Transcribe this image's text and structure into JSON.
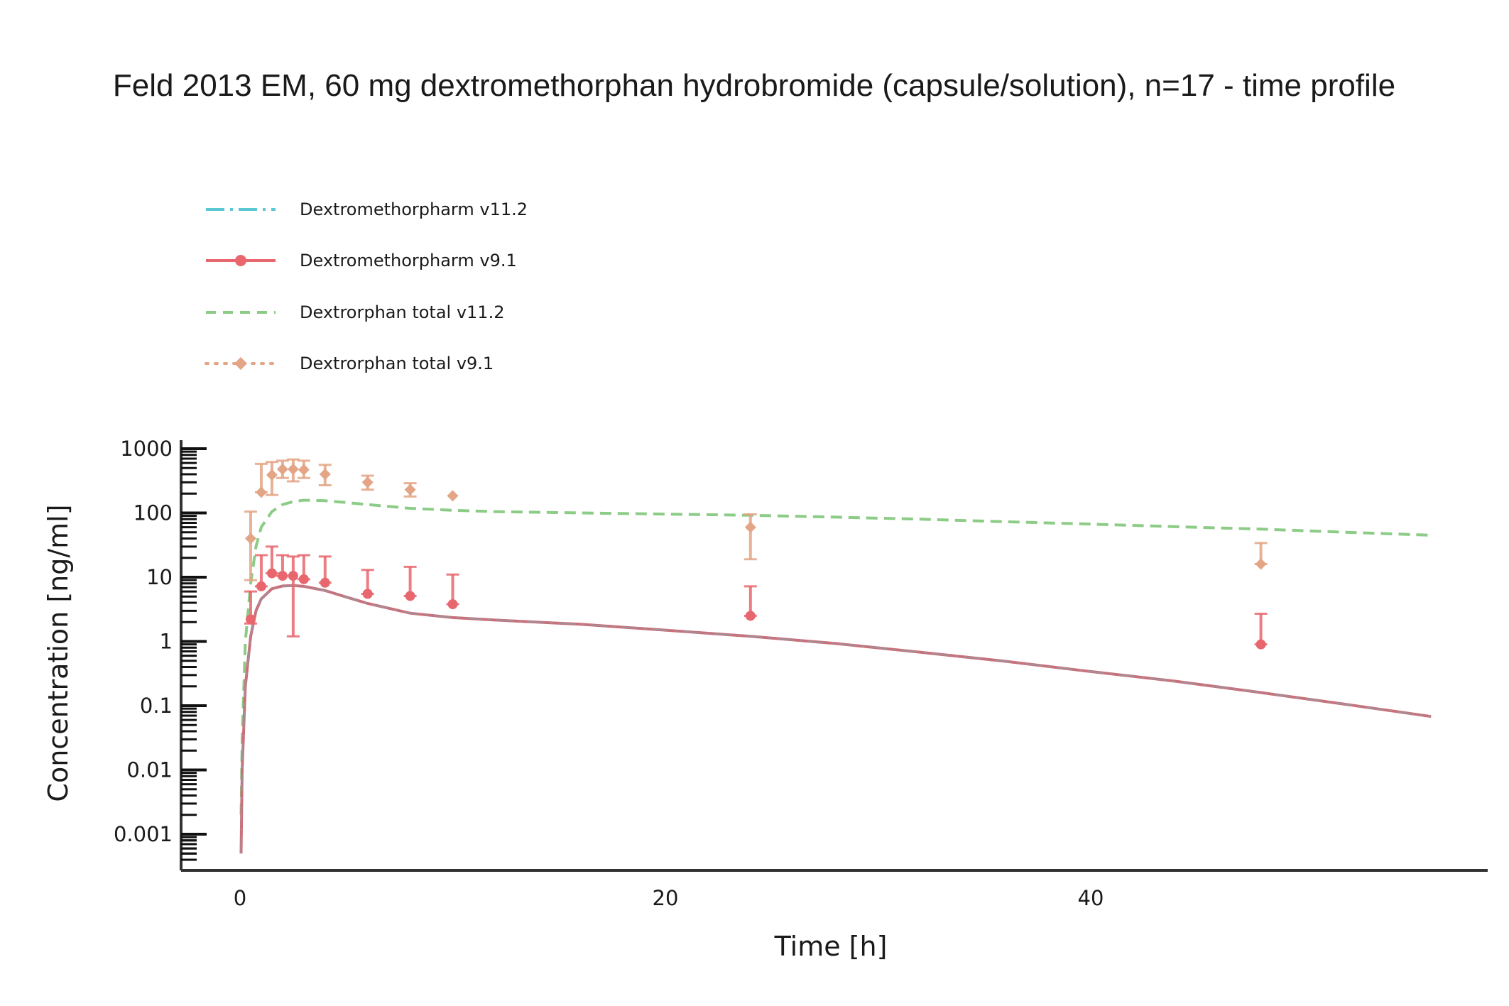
{
  "chart_data": {
    "type": "line",
    "title": "Feld 2013 EM, 60 mg dextromethorphan hydrobromide (capsule/solution), n=17 - time profile",
    "xlabel": "Time [h]",
    "ylabel": "Concentration [ng/ml]",
    "xlim": [
      -1.4,
      59
    ],
    "ylim": [
      0.00035,
      1500
    ],
    "yscale": "log",
    "x_ticks": [
      0,
      20,
      40
    ],
    "x_tick_labels": [
      "0",
      "20",
      "40"
    ],
    "y_ticks": [
      0.001,
      0.01,
      0.1,
      1,
      10,
      100,
      1000
    ],
    "y_tick_labels": [
      "0.001",
      "0.01",
      "0.1",
      "1",
      "10",
      "100",
      "1000"
    ],
    "legend_position": "top-left",
    "series": [
      {
        "name": "Dextromethorpharm v11.2",
        "kind": "simulation",
        "color": "#5bc8d4",
        "dash": "long-dash-dot",
        "x": [
          0.05,
          0.1,
          0.25,
          0.5,
          0.75,
          1,
          1.5,
          2,
          2.5,
          3,
          4,
          5,
          6,
          8,
          10,
          12,
          16,
          20,
          24,
          28,
          32,
          36,
          40,
          44,
          48,
          52,
          56
        ],
        "y": [
          0.0005,
          0.01,
          0.2,
          1.2,
          3.0,
          4.6,
          6.6,
          7.3,
          7.4,
          7.2,
          6.2,
          4.9,
          3.9,
          2.75,
          2.35,
          2.15,
          1.85,
          1.5,
          1.2,
          0.93,
          0.68,
          0.49,
          0.34,
          0.24,
          0.16,
          0.105,
          0.068
        ]
      },
      {
        "name": "Dextromethorpharm v9.1",
        "kind": "observed",
        "color": "#e8676e",
        "marker": "circle",
        "x": [
          0.5,
          1,
          1.5,
          2,
          2.5,
          3,
          4,
          6,
          8,
          10,
          24,
          48
        ],
        "y": [
          2.2,
          7.2,
          11.5,
          10.5,
          10.5,
          9.3,
          8.2,
          5.5,
          5.1,
          3.8,
          2.5,
          0.9
        ],
        "error_low": [
          1.9,
          7.2,
          11.5,
          10.5,
          1.2,
          9.3,
          8.2,
          5.5,
          5.1,
          3.8,
          2.5,
          0.9
        ],
        "error_high": [
          6.0,
          22.0,
          30.0,
          22.0,
          21.0,
          22.0,
          21.0,
          13.0,
          14.5,
          11.0,
          7.2,
          2.7
        ]
      },
      {
        "name": "Dextrorphan total v11.2",
        "kind": "simulation",
        "color": "#8ccc86",
        "dash": "dash",
        "x": [
          0.05,
          0.1,
          0.25,
          0.5,
          0.75,
          1,
          1.5,
          2,
          2.5,
          3,
          4,
          5,
          6,
          8,
          10,
          12,
          16,
          20,
          24,
          28,
          32,
          36,
          40,
          44,
          48,
          52,
          56
        ],
        "y": [
          0.002,
          0.03,
          1.0,
          8.0,
          30.0,
          60.0,
          105.0,
          135.0,
          150.0,
          158.0,
          155.0,
          145.0,
          135.0,
          118.0,
          110.0,
          105.0,
          100.0,
          96.0,
          92.0,
          86.0,
          80.0,
          73.0,
          67.0,
          61.0,
          56.0,
          50.0,
          45.0
        ]
      },
      {
        "name": "Dextrorphan total v9.1",
        "kind": "observed",
        "color": "#e3a585",
        "marker": "diamond",
        "x": [
          0.5,
          1,
          1.5,
          2,
          2.5,
          3,
          4,
          6,
          8,
          10,
          24,
          48
        ],
        "y": [
          40,
          210,
          390,
          480,
          480,
          470,
          400,
          300,
          230,
          185,
          60,
          16
        ],
        "error_low": [
          9,
          210,
          190,
          350,
          310,
          350,
          270,
          230,
          180,
          185,
          19,
          16
        ],
        "error_high": [
          105,
          580,
          620,
          650,
          680,
          650,
          560,
          380,
          290,
          185,
          95,
          34
        ]
      }
    ]
  }
}
